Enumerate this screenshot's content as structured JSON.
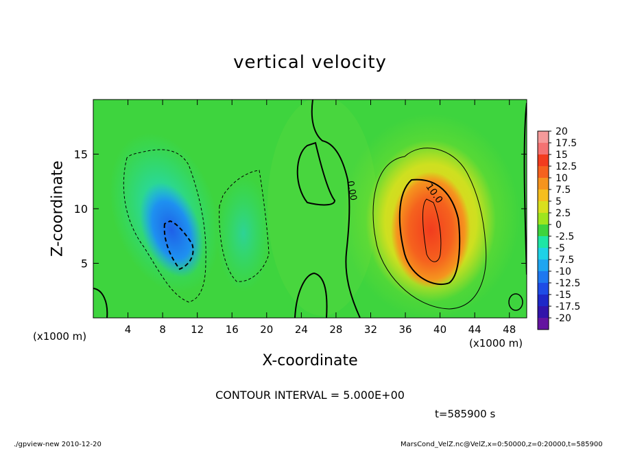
{
  "chart_data": {
    "type": "heatmap",
    "title": "vertical velocity",
    "xlabel": "X-coordinate",
    "ylabel": "Z-coordinate",
    "x_unit_label": "(x1000 m)",
    "xlim": [
      0,
      50
    ],
    "ylim": [
      0,
      20
    ],
    "x_ticks": [
      4,
      8,
      12,
      16,
      20,
      24,
      28,
      32,
      36,
      40,
      44,
      48
    ],
    "y_ticks": [
      5,
      10,
      15
    ],
    "contour_label": "10.0",
    "contour_label_zero": "0.00",
    "colorbar": {
      "ticks": [
        "20",
        "17.5",
        "15",
        "12.5",
        "10",
        "7.5",
        "5",
        "2.5",
        "0",
        "-2.5",
        "-5",
        "-7.5",
        "-10",
        "-12.5",
        "-15",
        "-17.5",
        "-20"
      ],
      "colors": [
        "#f59a9a",
        "#f47272",
        "#f23c1e",
        "#f5621e",
        "#f5941e",
        "#f5be1e",
        "#d9e01e",
        "#9ee61e",
        "#3ed43e",
        "#1ee6a5",
        "#1ed2e6",
        "#1ea5f0",
        "#1e78f0",
        "#1e4ce6",
        "#1e28c8",
        "#3214aa",
        "#6414a0"
      ]
    },
    "features": [
      {
        "sign": "negative",
        "x": 9.0,
        "z": 8.5,
        "peak": -11.5
      },
      {
        "sign": "positive",
        "x": 38.6,
        "z": 8.2,
        "peak": 14.0
      }
    ],
    "contour_interval_text": "CONTOUR INTERVAL = 5.000E+00",
    "time_text": "t=585900 s"
  },
  "footer": {
    "left": "./gpview-new   2010-12-20",
    "right": "MarsCond_VelZ.nc@VelZ,x=0:50000,z=0:20000,t=585900"
  }
}
